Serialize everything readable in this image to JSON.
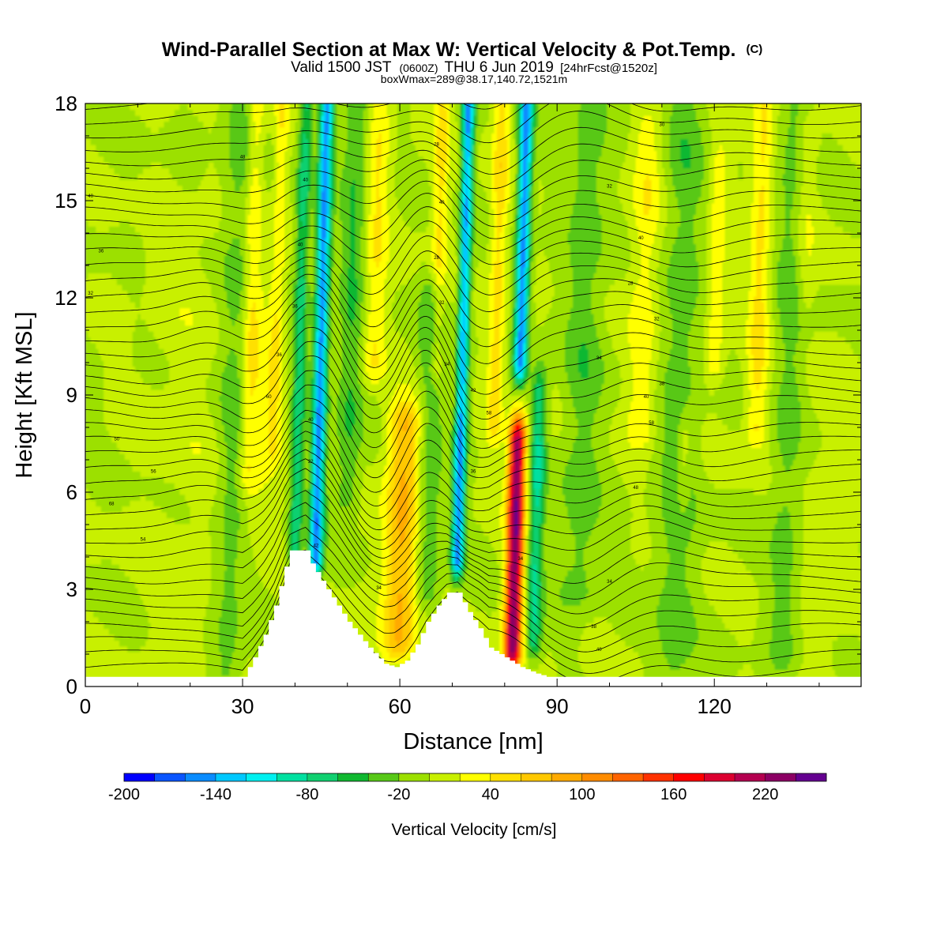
{
  "header": {
    "title_main": "Wind-Parallel Section at Max W: Vertical Velocity & Pot.Temp.",
    "title_mark": "(C)",
    "valid_prefix": "Valid 1500 JST",
    "valid_zulu": "(0600Z)",
    "valid_date": "THU 6 Jun 2019",
    "valid_fcst": "[24hrFcst@1520z]",
    "boxline": "boxWmax=289@38.17,140.72,1521m"
  },
  "chart_data": {
    "type": "heatmap",
    "xlabel": "Distance [nm]",
    "ylabel": "Height [Kft MSL]",
    "xlim": [
      0,
      148
    ],
    "ylim": [
      0,
      18
    ],
    "x_ticks": [
      0,
      30,
      60,
      90,
      120
    ],
    "y_ticks": [
      0,
      3,
      6,
      9,
      12,
      15,
      18
    ],
    "colorbar": {
      "label": "Vertical Velocity [cm/s]",
      "min": -200,
      "max": 260,
      "step": 20,
      "tick_labels": [
        -200,
        -140,
        -80,
        -20,
        40,
        100,
        160,
        220
      ],
      "colors": [
        "#0000ff",
        "#0a55ff",
        "#0a8cff",
        "#00c8ff",
        "#00f0f0",
        "#00e0a0",
        "#10d070",
        "#10b830",
        "#58c818",
        "#9ce000",
        "#c8f000",
        "#ffff00",
        "#ffe000",
        "#ffc800",
        "#ffaa00",
        "#ff8c00",
        "#ff6400",
        "#ff3200",
        "#ff0000",
        "#dc0030",
        "#b40050",
        "#8c0064",
        "#640090"
      ]
    },
    "terrain_kft": [
      [
        0,
        0.3
      ],
      [
        30,
        0.3
      ],
      [
        32,
        0.9
      ],
      [
        34,
        1.6
      ],
      [
        36,
        2.5
      ],
      [
        38,
        3.7
      ],
      [
        39,
        4.2
      ],
      [
        42,
        4.2
      ],
      [
        43,
        3.8
      ],
      [
        46,
        3.0
      ],
      [
        50,
        2.0
      ],
      [
        54,
        1.2
      ],
      [
        57,
        0.7
      ],
      [
        59,
        0.6
      ],
      [
        61,
        0.8
      ],
      [
        63,
        1.3
      ],
      [
        65,
        2.0
      ],
      [
        67,
        2.5
      ],
      [
        69,
        2.9
      ],
      [
        71,
        2.9
      ],
      [
        73,
        2.3
      ],
      [
        75,
        1.8
      ],
      [
        77,
        1.2
      ],
      [
        80,
        0.9
      ],
      [
        83,
        0.6
      ],
      [
        86,
        0.4
      ],
      [
        88,
        0.3
      ],
      [
        148,
        0.3
      ]
    ],
    "updrafts": [
      {
        "x": 31,
        "h0": 6.5,
        "h1": 18,
        "w": 1.6,
        "v": 40
      },
      {
        "x": 36,
        "h0": 7.5,
        "h1": 18,
        "w": 1.3,
        "v": 35
      },
      {
        "x": 33.5,
        "h0": 5,
        "h1": 12,
        "w": 3,
        "v": 20
      },
      {
        "x": 55,
        "h0": 10,
        "h1": 18,
        "w": 2.2,
        "v": 40
      },
      {
        "x": 60,
        "h0": 1.5,
        "h1": 8,
        "w": 3.3,
        "v": 85
      },
      {
        "x": 67,
        "h0": 10,
        "h1": 18,
        "w": 1.4,
        "v": 45
      },
      {
        "x": 71,
        "h0": 9,
        "h1": 16,
        "w": 1.2,
        "v": 25
      },
      {
        "x": 78,
        "h0": 8,
        "h1": 18,
        "w": 1.6,
        "v": 50
      },
      {
        "x": 81.5,
        "h0": 1.2,
        "h1": 7.5,
        "w": 1.6,
        "v": 235
      },
      {
        "x": 106,
        "h0": 8,
        "h1": 17,
        "w": 2.8,
        "v": 35
      },
      {
        "x": 120,
        "h0": 10,
        "h1": 16,
        "w": 1.8,
        "v": 35
      },
      {
        "x": 128,
        "h0": 8,
        "h1": 18,
        "w": 2,
        "v": 45
      },
      {
        "x": 137,
        "h0": 12,
        "h1": 17,
        "w": 2,
        "v": 25
      },
      {
        "x": 114,
        "h0": 6,
        "h1": 7.5,
        "w": 1.2,
        "v": 30
      },
      {
        "x": 18,
        "h0": 0.5,
        "h1": 14,
        "w": 8,
        "v": 10
      },
      {
        "x": 140,
        "h0": 0.5,
        "h1": 10,
        "w": 6,
        "v": 8
      }
    ],
    "downdrafts": [
      {
        "x": 44,
        "h0": 4,
        "h1": 18,
        "w": 1.3,
        "v": -150
      },
      {
        "x": 40,
        "h0": 4,
        "h1": 18,
        "w": 1.3,
        "v": -70
      },
      {
        "x": 71,
        "h0": 4,
        "h1": 18,
        "w": 1.2,
        "v": -150
      },
      {
        "x": 83,
        "h0": 10,
        "h1": 18,
        "w": 1.3,
        "v": -150
      },
      {
        "x": 85.5,
        "h0": 1.5,
        "h1": 9,
        "w": 1.5,
        "v": -80
      },
      {
        "x": 50,
        "h0": 6,
        "h1": 18,
        "w": 2.5,
        "v": -40
      },
      {
        "x": 65,
        "h0": 3,
        "h1": 12,
        "w": 2.5,
        "v": -40
      },
      {
        "x": 94,
        "h0": 3,
        "h1": 18,
        "w": 4,
        "v": -30
      },
      {
        "x": 27,
        "h0": 0.5,
        "h1": 18,
        "w": 3,
        "v": -30
      },
      {
        "x": 112,
        "h0": 0.5,
        "h1": 18,
        "w": 4,
        "v": -30
      },
      {
        "x": 133,
        "h0": 1,
        "h1": 18,
        "w": 3,
        "v": -30
      }
    ],
    "isentrope_count": 44,
    "contour_labels": [
      {
        "x": 1,
        "y": 15.1,
        "t": "40"
      },
      {
        "x": 3,
        "y": 13.4,
        "t": "36"
      },
      {
        "x": 1,
        "y": 12.1,
        "t": "32"
      },
      {
        "x": 6,
        "y": 7.6,
        "t": "50"
      },
      {
        "x": 13,
        "y": 6.6,
        "t": "56"
      },
      {
        "x": 5,
        "y": 5.6,
        "t": "68"
      },
      {
        "x": 11,
        "y": 4.5,
        "t": "54"
      },
      {
        "x": 30,
        "y": 16.3,
        "t": "48"
      },
      {
        "x": 42,
        "y": 15.6,
        "t": "40"
      },
      {
        "x": 41,
        "y": 13.6,
        "t": "40"
      },
      {
        "x": 40,
        "y": 11.7,
        "t": "36"
      },
      {
        "x": 37,
        "y": 10.2,
        "t": "36"
      },
      {
        "x": 35,
        "y": 8.9,
        "t": "60"
      },
      {
        "x": 43,
        "y": 8.2,
        "t": "40"
      },
      {
        "x": 43,
        "y": 6.9,
        "t": "22"
      },
      {
        "x": 44,
        "y": 4.3,
        "t": "42"
      },
      {
        "x": 67,
        "y": 16.7,
        "t": "28"
      },
      {
        "x": 68,
        "y": 14.9,
        "t": "40"
      },
      {
        "x": 67,
        "y": 13.2,
        "t": "28"
      },
      {
        "x": 68,
        "y": 11.8,
        "t": "32"
      },
      {
        "x": 69,
        "y": 9.9,
        "t": "34"
      },
      {
        "x": 74,
        "y": 9.1,
        "t": "42"
      },
      {
        "x": 77,
        "y": 8.4,
        "t": "58"
      },
      {
        "x": 74,
        "y": 6.6,
        "t": "36"
      },
      {
        "x": 56,
        "y": 3.0,
        "t": "34"
      },
      {
        "x": 83,
        "y": 3.9,
        "t": "34"
      },
      {
        "x": 110,
        "y": 17.3,
        "t": "30"
      },
      {
        "x": 100,
        "y": 15.4,
        "t": "32"
      },
      {
        "x": 106,
        "y": 13.8,
        "t": "40"
      },
      {
        "x": 104,
        "y": 12.4,
        "t": "28"
      },
      {
        "x": 109,
        "y": 11.3,
        "t": "32"
      },
      {
        "x": 98,
        "y": 10.1,
        "t": "34"
      },
      {
        "x": 110,
        "y": 9.3,
        "t": "38"
      },
      {
        "x": 107,
        "y": 8.9,
        "t": "40"
      },
      {
        "x": 108,
        "y": 8.1,
        "t": "58"
      },
      {
        "x": 105,
        "y": 6.1,
        "t": "48"
      },
      {
        "x": 100,
        "y": 3.2,
        "t": "34"
      },
      {
        "x": 97,
        "y": 1.8,
        "t": "38"
      },
      {
        "x": 98,
        "y": 1.1,
        "t": "40"
      }
    ]
  }
}
